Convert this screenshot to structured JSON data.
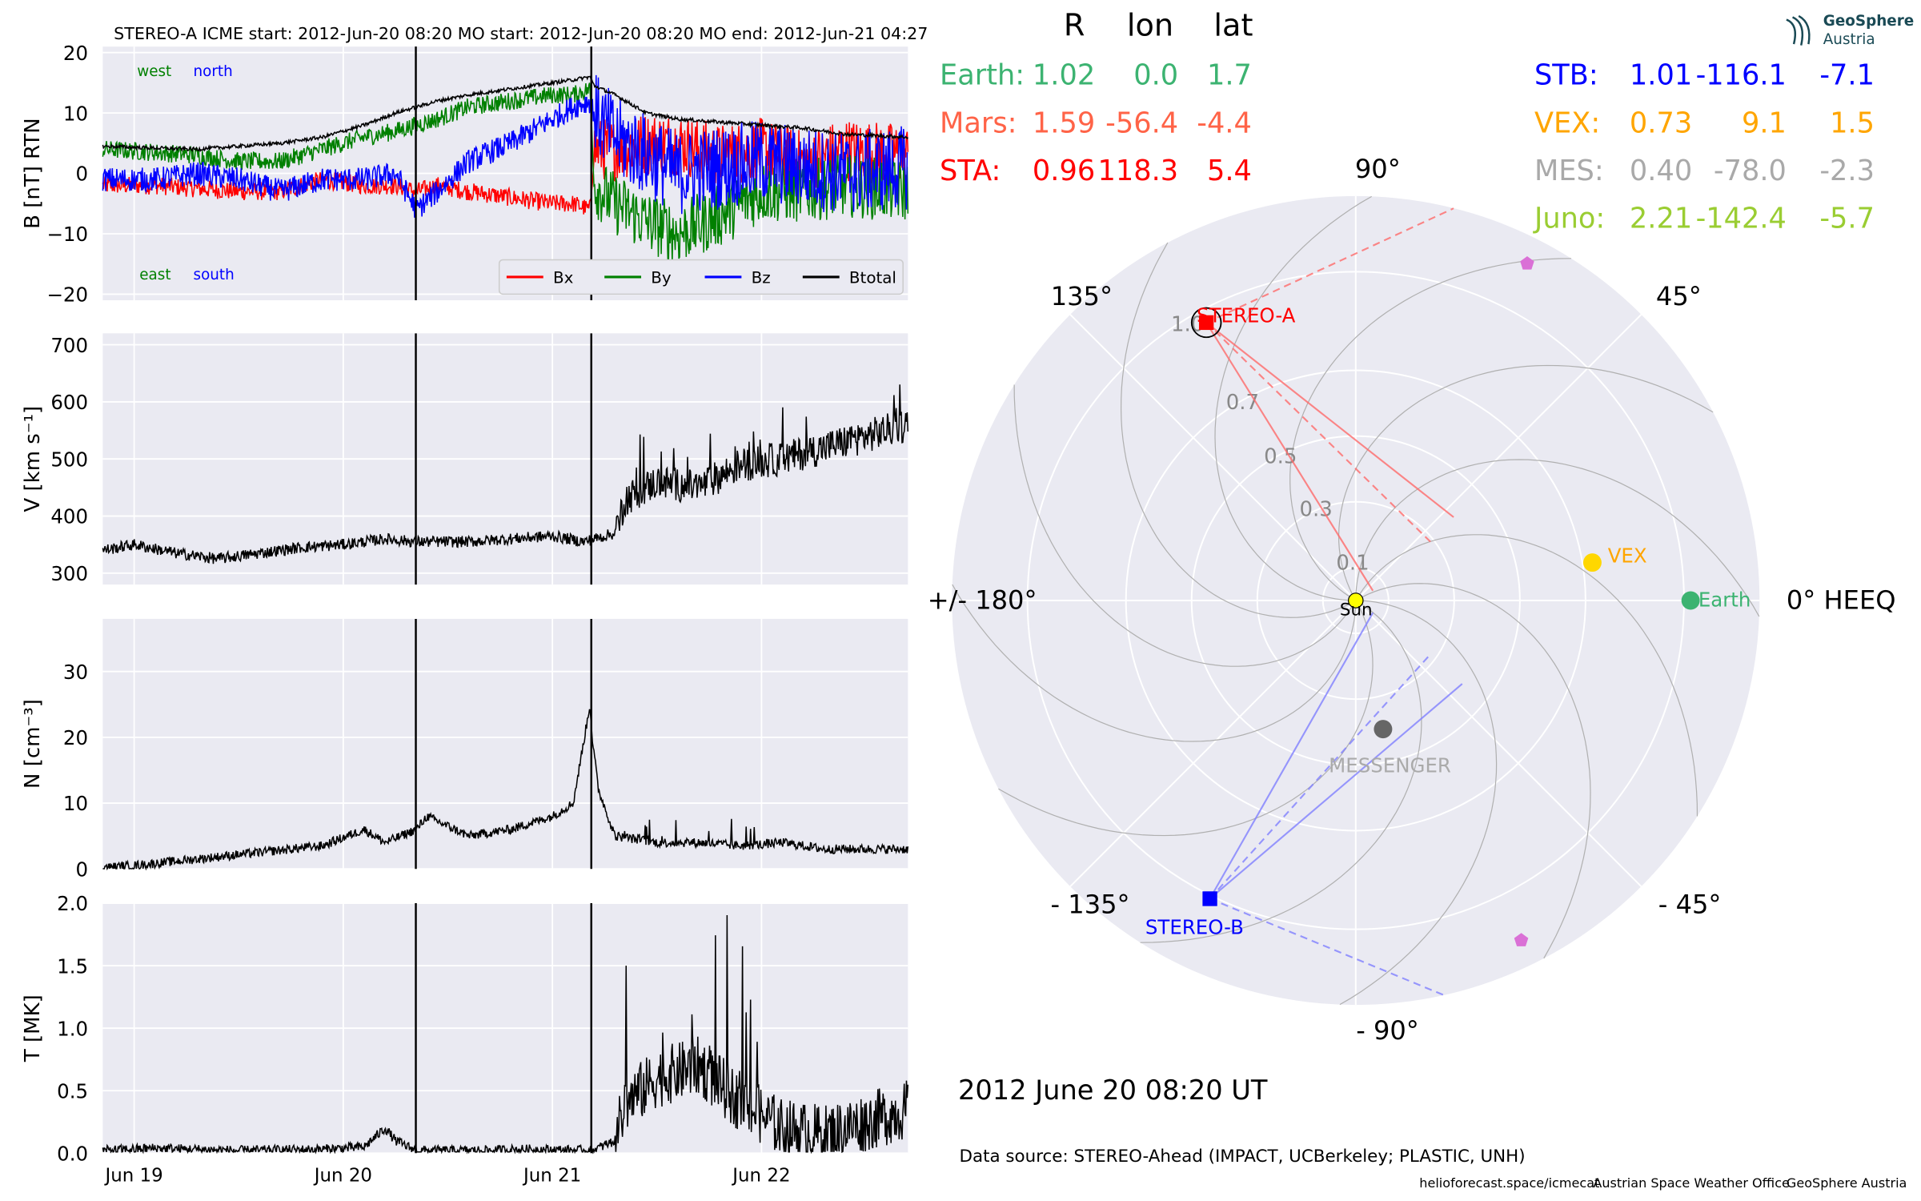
{
  "chart_data": [
    {
      "type": "line",
      "title": "STEREO-A    ICME start: 2012-Jun-20 08:20   MO start: 2012-Jun-20 08:20   MO end: 2012-Jun-21 04:27",
      "ylabel": "B [nT] RTN",
      "ylim": [
        -21,
        21
      ],
      "yticks": [
        20,
        10,
        0,
        -10,
        -20
      ],
      "ytick_labels": [
        "20",
        "10",
        "0",
        "−10",
        "−20"
      ],
      "xlim": [
        18.85,
        22.7
      ],
      "xtick_values": [
        19.0,
        20.0,
        21.0,
        22.0
      ],
      "xtick_labels": [
        "Jun 19",
        "Jun 20",
        "Jun 21",
        "Jun 22"
      ],
      "annotations": {
        "west": "west",
        "north": "north",
        "east": "east",
        "south": "south"
      },
      "legend": {
        "placement": "lower-right",
        "entries": [
          "Bx",
          "By",
          "Bz",
          "Btotal"
        ]
      },
      "vlines": [
        20.347,
        21.186
      ],
      "x": [
        18.85,
        19.1,
        19.3,
        19.5,
        19.7,
        19.9,
        20.1,
        20.25,
        20.35,
        20.45,
        20.6,
        20.8,
        21.0,
        21.1,
        21.18,
        21.2,
        21.3,
        21.45,
        21.6,
        21.8,
        22.0,
        22.2,
        22.4,
        22.7
      ],
      "series": [
        {
          "name": "Bx",
          "color": "#ff0000",
          "noise": 1.5,
          "values": [
            -2,
            -2,
            -2.5,
            -3,
            -3,
            -1,
            -2,
            -2,
            -3,
            -2,
            -3,
            -4,
            -5,
            -5,
            -6,
            4,
            4,
            5,
            5,
            3,
            4,
            2,
            4,
            3
          ]
        },
        {
          "name": "By",
          "color": "#008000",
          "noise": 1.5,
          "values": [
            4,
            3.5,
            3,
            2,
            2,
            4,
            6,
            7,
            8,
            9,
            11,
            12,
            13,
            13,
            14,
            -2,
            -5,
            -8,
            -10,
            -7,
            -3,
            -3,
            -2,
            -3
          ]
        },
        {
          "name": "Bz",
          "color": "#0000ff",
          "noise": 2.0,
          "values": [
            -1,
            -1,
            0,
            -1,
            -3,
            -1,
            -1,
            0,
            -6,
            -3,
            2,
            5,
            9,
            11,
            12,
            10,
            6,
            3,
            0,
            1,
            2,
            1,
            0,
            1
          ]
        },
        {
          "name": "Btotal",
          "color": "#000000",
          "noise": 0.3,
          "values": [
            4.5,
            4.2,
            4,
            4.5,
            5,
            6,
            8,
            10,
            11,
            12,
            13,
            14,
            15,
            15.5,
            16,
            14.5,
            13,
            10,
            9,
            8.5,
            8,
            7.5,
            6.5,
            6
          ]
        }
      ]
    },
    {
      "type": "line",
      "ylabel": "V [km s⁻¹]",
      "ylim": [
        280,
        720
      ],
      "yticks": [
        300,
        400,
        500,
        600,
        700
      ],
      "ytick_labels": [
        "300",
        "400",
        "500",
        "600",
        "700"
      ],
      "xlim": [
        18.85,
        22.7
      ],
      "vlines": [
        20.347,
        21.186
      ],
      "x": [
        18.85,
        19.0,
        19.2,
        19.4,
        19.6,
        19.8,
        20.0,
        20.2,
        20.35,
        20.6,
        20.8,
        21.0,
        21.15,
        21.2,
        21.3,
        21.35,
        21.5,
        21.7,
        21.9,
        22.1,
        22.3,
        22.5,
        22.7
      ],
      "series": [
        {
          "name": "",
          "color": "#000000",
          "noise": 10,
          "values": [
            340,
            350,
            335,
            325,
            335,
            345,
            350,
            360,
            355,
            355,
            360,
            365,
            355,
            360,
            370,
            430,
            460,
            450,
            490,
            500,
            520,
            540,
            560
          ]
        }
      ]
    },
    {
      "type": "line",
      "ylabel": "N [cm⁻³]",
      "ylim": [
        0,
        38
      ],
      "yticks": [
        0,
        10,
        20,
        30
      ],
      "ytick_labels": [
        "0",
        "10",
        "20",
        "30"
      ],
      "xlim": [
        18.85,
        22.7
      ],
      "vlines": [
        20.347,
        21.186
      ],
      "x": [
        18.85,
        19.0,
        19.3,
        19.6,
        19.9,
        20.1,
        20.2,
        20.35,
        20.4,
        20.6,
        20.8,
        21.0,
        21.1,
        21.18,
        21.19,
        21.22,
        21.3,
        21.5,
        21.7,
        21.9,
        22.1,
        22.3,
        22.5,
        22.7
      ],
      "series": [
        {
          "name": "",
          "color": "#000000",
          "noise": 0.7,
          "values": [
            0.2,
            0.5,
            1.5,
            2.5,
            3.5,
            6,
            4,
            6,
            8,
            5,
            6,
            8,
            10,
            25,
            20,
            12,
            5,
            4,
            4,
            3.5,
            4,
            3,
            3,
            3
          ]
        }
      ]
    },
    {
      "type": "line",
      "ylabel": "T [MK]",
      "ylim": [
        0,
        2.0
      ],
      "yticks": [
        0.0,
        0.5,
        1.0,
        1.5,
        2.0
      ],
      "ytick_labels": [
        "0.0",
        "0.5",
        "1.0",
        "1.5",
        "2.0"
      ],
      "xlim": [
        18.85,
        22.7
      ],
      "vlines": [
        20.347,
        21.186
      ],
      "x": [
        18.85,
        19.1,
        19.5,
        19.9,
        20.1,
        20.2,
        20.25,
        20.35,
        20.6,
        20.9,
        21.19,
        21.3,
        21.35,
        21.5,
        21.7,
        21.9,
        22.1,
        22.3,
        22.5,
        22.7
      ],
      "series": [
        {
          "name": "",
          "color": "#000000",
          "noise": 0.04,
          "values": [
            0.02,
            0.04,
            0.02,
            0.03,
            0.05,
            0.2,
            0.1,
            0.02,
            0.02,
            0.03,
            0.02,
            0.1,
            0.4,
            0.6,
            0.7,
            0.4,
            0.2,
            0.15,
            0.25,
            0.35
          ]
        }
      ]
    },
    {
      "type": "scatter",
      "description_axes": "polar",
      "radial_ticks": [
        0.1,
        0.3,
        0.5,
        0.7,
        1.0
      ],
      "radial_tick_labels": [
        "0.1",
        "0.3",
        "0.5",
        "0.7",
        "1.0"
      ],
      "angle_labels": [
        "0° HEEQ",
        "45°",
        "90°",
        "135°",
        "+/- 180°",
        "- 135°",
        "- 90°",
        "- 45°"
      ],
      "angle_values": [
        0,
        45,
        90,
        135,
        180,
        -135,
        -90,
        -45
      ],
      "rmax": 1.23,
      "planets": [
        {
          "name": "Sun",
          "label": "Sun",
          "r": 0.0,
          "lon": 0.0,
          "color": "#ffff00",
          "marker": "circle",
          "label_color": "#000000"
        },
        {
          "name": "Earth",
          "label": "Earth",
          "r": 1.02,
          "lon": 0.0,
          "color": "#3cb371",
          "marker": "circle",
          "label_color": "#3cb371"
        },
        {
          "name": "VEX",
          "label": "VEX",
          "r": 0.73,
          "lon": 9.1,
          "color": "#ffd700",
          "marker": "circle",
          "label_color": "#ffa500"
        },
        {
          "name": "MESSENGER",
          "label": "MESSENGER",
          "r": 0.4,
          "lon": -78.0,
          "color": "#666666",
          "marker": "circle",
          "label_color": "#aaaaaa"
        },
        {
          "name": "STEREO-A",
          "label": "STEREO-A",
          "r": 0.96,
          "lon": 118.3,
          "color": "#ff0000",
          "marker": "square",
          "label_color": "#ff0000"
        },
        {
          "name": "STEREO-B",
          "label": "STEREO-B",
          "r": 1.01,
          "lon": -116.1,
          "color": "#0000ff",
          "marker": "square",
          "label_color": "#0000ff"
        },
        {
          "name": "Juno-ish1",
          "label": "",
          "r": 1.15,
          "lon": 63.0,
          "color": "#da70d6",
          "marker": "pentagon",
          "label_color": "#da70d6"
        },
        {
          "name": "Juno-ish2",
          "label": "",
          "r": 1.15,
          "lon": -64.0,
          "color": "#da70d6",
          "marker": "pentagon",
          "label_color": "#da70d6"
        }
      ],
      "table": {
        "headers": [
          "R",
          "lon",
          "lat"
        ],
        "left": [
          {
            "name": "Earth:",
            "R": "1.02",
            "lon": "0.0",
            "lat": "1.7",
            "color": "#3cb371"
          },
          {
            "name": "Mars:",
            "R": "1.59",
            "lon": "-56.4",
            "lat": "-4.4",
            "color": "#ff6347"
          },
          {
            "name": "STA:",
            "R": "0.96",
            "lon": "118.3",
            "lat": "5.4",
            "color": "#ff0000"
          }
        ],
        "right": [
          {
            "name": "STB:",
            "R": "1.01",
            "lon": "-116.1",
            "lat": "-7.1",
            "color": "#0000ff"
          },
          {
            "name": "VEX:",
            "R": "0.73",
            "lon": "9.1",
            "lat": "1.5",
            "color": "#ffa500"
          },
          {
            "name": "MES:",
            "R": "0.40",
            "lon": "-78.0",
            "lat": "-2.3",
            "color": "#a9a9a9"
          },
          {
            "name": "Juno:",
            "R": "2.21",
            "lon": "-142.4",
            "lat": "-5.7",
            "color": "#9acd32"
          }
        ]
      }
    }
  ],
  "date_label": "2012 June 20  08:20 UT",
  "data_source": "Data source: STEREO-Ahead (IMPACT, UCBerkeley; PLASTIC, UNH)",
  "footer": {
    "site": "helioforecast.space/icmecat",
    "office": "Austrian Space Weather Office",
    "org": "GeoSphere Austria"
  },
  "logo": {
    "line1": "GeoSphere",
    "line2": "Austria"
  },
  "colors": {
    "panel_bg": "#eaeaf2",
    "grid": "#ffffff",
    "vline": "#000000"
  }
}
